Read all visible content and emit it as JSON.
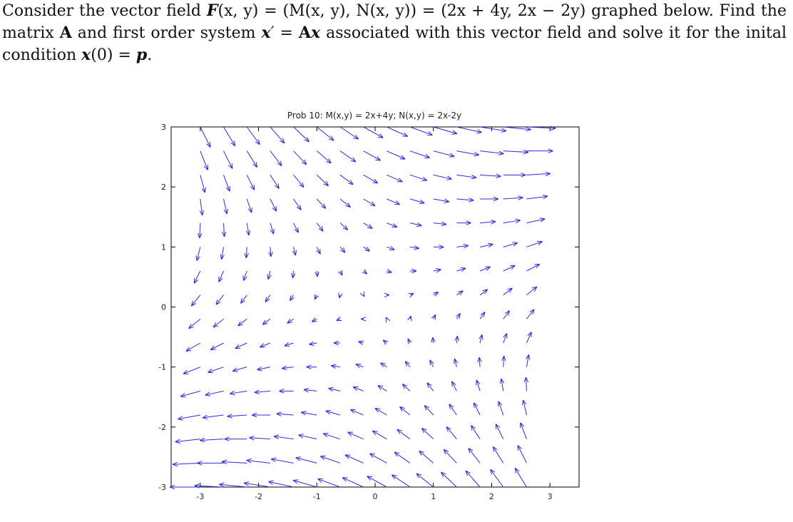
{
  "problem": {
    "p1": "Consider the vector field ",
    "F": "F",
    "p2": "(x, y) = (M(x, y), N(x, y)) = (2x + 4y, 2x − 2y) graphed below. Find the matrix ",
    "A": "A",
    "p3": " and first order system ",
    "x1": "x",
    "p4": "′ = ",
    "A2": "A",
    "x2": "x",
    "p5": " associated with this vector field and solve it for the inital condition ",
    "x3": "x",
    "p6": "(0) = ",
    "pvec": "p",
    "p7": "."
  },
  "chart_data": {
    "type": "quiver",
    "title": "Prob 10: M(x,y) = 2x+4y; N(x,y) = 2x-2y",
    "field": {
      "M": "2x+4y",
      "N": "2x-2y"
    },
    "xlim": [
      -3.5,
      3.5
    ],
    "ylim": [
      -3,
      3
    ],
    "grid_x": [
      -3,
      2.8,
      0.4
    ],
    "grid_y": [
      -3,
      3,
      0.4
    ],
    "xticks": [
      -3,
      -2,
      -1,
      0,
      1,
      2,
      3
    ],
    "yticks": [
      -3,
      -2,
      -1,
      0,
      1,
      2,
      3
    ],
    "xticklabels": [
      "-3",
      "-2",
      "-1",
      "0",
      "1",
      "2",
      "3"
    ],
    "yticklabels": [
      "-3",
      "-2",
      "-1",
      "0",
      "1",
      "2",
      "3"
    ],
    "grid": false,
    "arrow_color": "#2b2bd6"
  }
}
